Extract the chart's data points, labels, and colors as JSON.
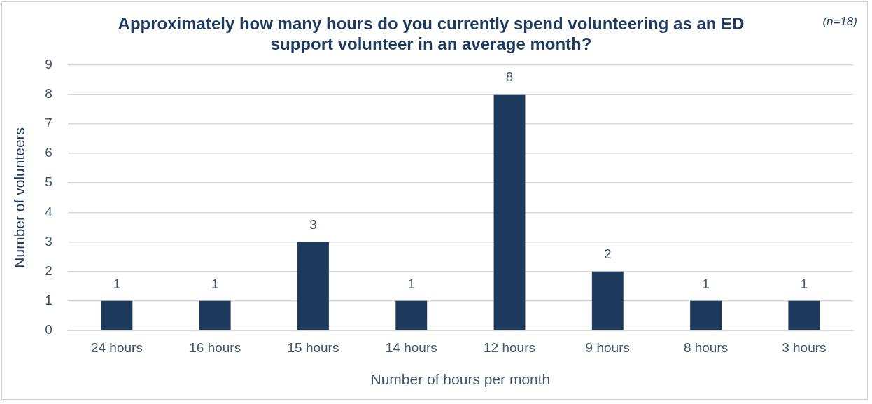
{
  "chart_data": {
    "type": "bar",
    "title": "Approximately how many hours do you currently spend volunteering as an ED support volunteer in an average month?",
    "xlabel": "Number of hours per month",
    "ylabel": "Number of volunteers",
    "annotations": [
      "(n=18)"
    ],
    "categories": [
      "24 hours",
      "16 hours",
      "15 hours",
      "14 hours",
      "12 hours",
      "9 hours",
      "8 hours",
      "3 hours"
    ],
    "values": [
      1,
      1,
      3,
      1,
      8,
      2,
      1,
      1
    ],
    "color": "#1d3a5c",
    "ylim": [
      0,
      9
    ],
    "yticks": [
      0,
      1,
      2,
      3,
      4,
      5,
      6,
      7,
      8,
      9
    ],
    "grid": "y",
    "data_labels": true,
    "legend": false
  }
}
